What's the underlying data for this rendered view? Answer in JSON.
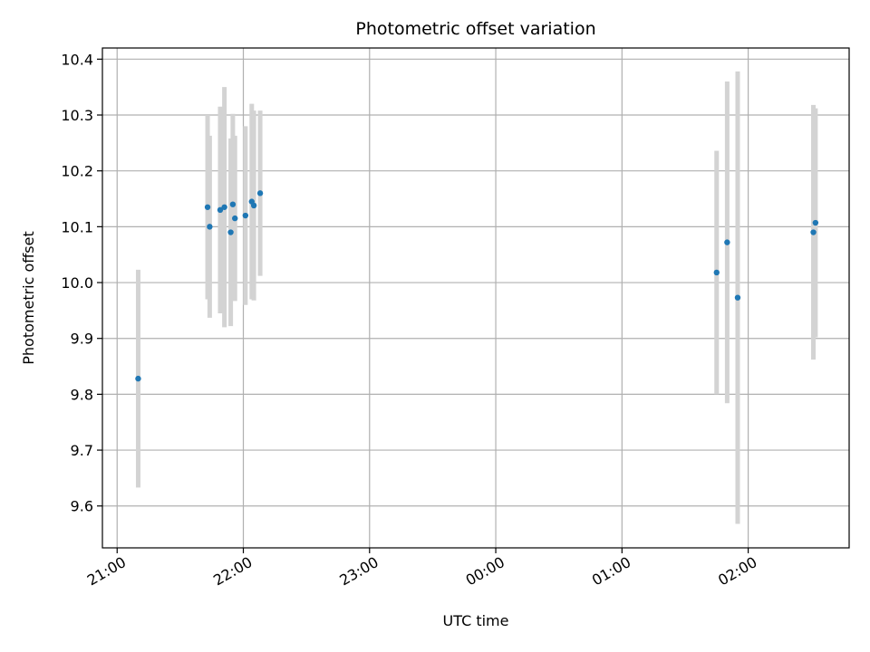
{
  "chart_data": {
    "type": "scatter",
    "title": "Photometric offset variation",
    "xlabel": "UTC time",
    "ylabel": "Photometric offset",
    "x_ticks": [
      "21:00",
      "22:00",
      "23:00",
      "00:00",
      "01:00",
      "02:00"
    ],
    "x_tick_times": [
      "21:00",
      "22:00",
      "23:00",
      "24:00",
      "25:00",
      "26:00"
    ],
    "xlim": [
      "20:53",
      "26:48"
    ],
    "ylim": [
      9.525,
      10.42
    ],
    "y_ticks": [
      "9.6",
      "9.7",
      "9.8",
      "9.9",
      "10.0",
      "10.1",
      "10.2",
      "10.3",
      "10.4"
    ],
    "grid": true,
    "colors": {
      "points": "#1f77b4",
      "errorbars": "#d3d3d3",
      "grid": "#b0b0b0"
    },
    "points": [
      {
        "x": "21:10",
        "y": 9.828,
        "yerr": 0.195
      },
      {
        "x": "21:43",
        "y": 10.135,
        "yerr": 0.165
      },
      {
        "x": "21:44",
        "y": 10.1,
        "yerr": 0.163
      },
      {
        "x": "21:49",
        "y": 10.13,
        "yerr": 0.185
      },
      {
        "x": "21:51",
        "y": 10.135,
        "yerr": 0.215
      },
      {
        "x": "21:54",
        "y": 10.09,
        "yerr": 0.168
      },
      {
        "x": "21:55",
        "y": 10.14,
        "yerr": 0.162
      },
      {
        "x": "21:56",
        "y": 10.115,
        "yerr": 0.148
      },
      {
        "x": "22:01",
        "y": 10.12,
        "yerr": 0.16
      },
      {
        "x": "22:04",
        "y": 10.145,
        "yerr": 0.175
      },
      {
        "x": "22:05",
        "y": 10.138,
        "yerr": 0.17
      },
      {
        "x": "22:08",
        "y": 10.16,
        "yerr": 0.148
      },
      {
        "x": "25:45",
        "y": 10.018,
        "yerr": 0.218
      },
      {
        "x": "25:50",
        "y": 10.072,
        "yerr": 0.288
      },
      {
        "x": "25:55",
        "y": 9.973,
        "yerr": 0.405
      },
      {
        "x": "26:31",
        "y": 10.09,
        "yerr": 0.228
      },
      {
        "x": "26:32",
        "y": 10.107,
        "yerr": 0.205
      }
    ]
  }
}
